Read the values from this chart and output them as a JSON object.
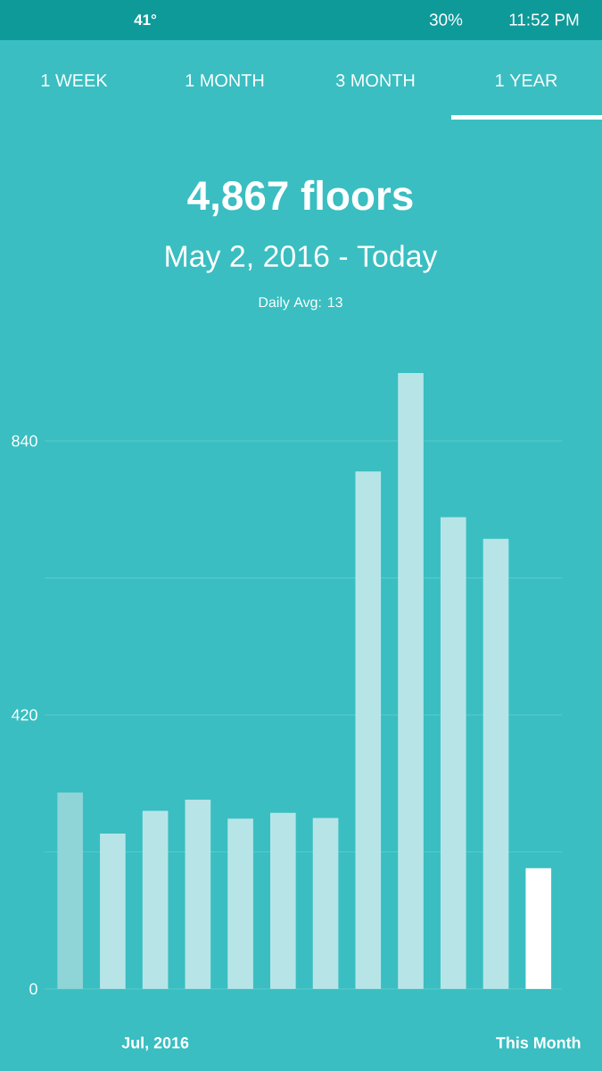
{
  "chart_data": {
    "type": "bar",
    "title": "4,867 floors",
    "subtitle": "May 2, 2016 - Today",
    "annotations": [
      "Daily Avg: 13",
      "1 WEEK",
      "1 MONTH",
      "3 MONTH",
      "1 YEAR",
      "41°",
      "30%",
      "11:52 PM"
    ],
    "categories": [
      null,
      null,
      "Jul, 2016",
      null,
      null,
      null,
      null,
      null,
      null,
      null,
      null,
      "This Month"
    ],
    "values": [
      301,
      238,
      273,
      290,
      261,
      270,
      262,
      793,
      944,
      723,
      690,
      185
    ],
    "colors": [
      "#8fd4d6",
      "#b7e5e7",
      "#b7e5e7",
      "#b7e5e7",
      "#b7e5e7",
      "#b7e5e7",
      "#b7e5e7",
      "#b7e5e7",
      "#b7e5e7",
      "#b7e5e7",
      "#b7e5e7",
      "#ffffff"
    ],
    "yticks": [
      0,
      {
        "value": 210,
        "label": null
      },
      420,
      {
        "value": 630,
        "label": null
      },
      840
    ],
    "ylim": [
      0,
      944
    ],
    "grid": "y"
  }
}
